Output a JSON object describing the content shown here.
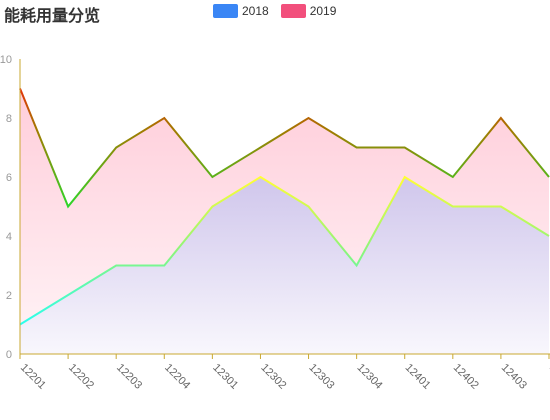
{
  "chart_data": {
    "type": "area",
    "title": "能耗用量分览",
    "categories": [
      "12201",
      "12202",
      "12203",
      "12204",
      "12301",
      "12302",
      "12303",
      "12304",
      "12401",
      "12402",
      "12403",
      "1"
    ],
    "series": [
      {
        "name": "2018",
        "legend_color": "#3a86f5",
        "values": [
          1,
          2,
          3,
          3,
          5,
          6,
          5,
          3,
          6,
          5,
          5,
          4
        ]
      },
      {
        "name": "2019",
        "legend_color": "#f24f7c",
        "values": [
          9,
          5,
          7,
          8,
          6,
          7,
          8,
          7,
          7,
          6,
          8,
          6
        ]
      }
    ],
    "ylim": [
      0,
      10
    ],
    "yticks": [
      "0",
      "2",
      "4",
      "6",
      "8",
      "10"
    ],
    "xlabel": "",
    "ylabel": "",
    "grid": false,
    "legend_position": "top-center"
  }
}
